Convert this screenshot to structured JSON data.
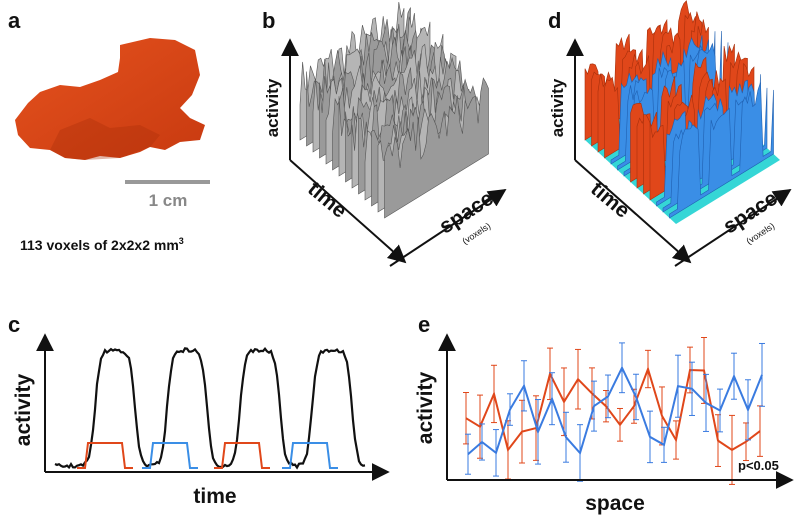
{
  "panels": {
    "a": {
      "label": "a",
      "scale_bar": "1 cm",
      "caption": "113 voxels of 2x2x2 mm",
      "caption_superscript": "3"
    },
    "b": {
      "label": "b",
      "y_axis": "activity",
      "x_axis": "time",
      "z_axis": "space",
      "z_axis_note": "(voxels)"
    },
    "c": {
      "label": "c",
      "y_axis": "activity",
      "x_axis": "time"
    },
    "d": {
      "label": "d",
      "y_axis": "activity",
      "x_axis": "time",
      "z_axis": "space",
      "z_axis_note": "(voxels)"
    },
    "e": {
      "label": "e",
      "y_axis": "activity",
      "x_axis": "space",
      "annotation": "p<0.05"
    }
  }
}
